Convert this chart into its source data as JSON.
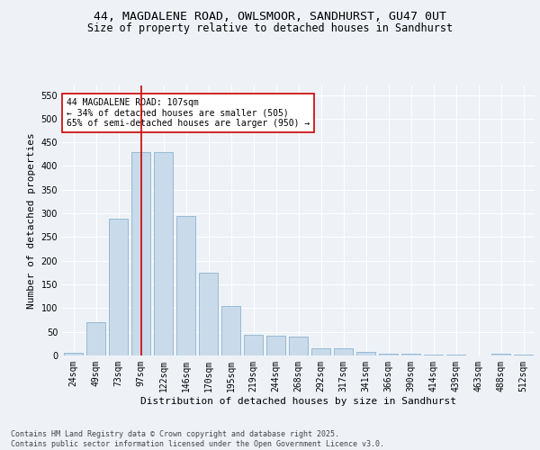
{
  "title_line1": "44, MAGDALENE ROAD, OWLSMOOR, SANDHURST, GU47 0UT",
  "title_line2": "Size of property relative to detached houses in Sandhurst",
  "xlabel": "Distribution of detached houses by size in Sandhurst",
  "ylabel": "Number of detached properties",
  "categories": [
    "24sqm",
    "49sqm",
    "73sqm",
    "97sqm",
    "122sqm",
    "146sqm",
    "170sqm",
    "195sqm",
    "219sqm",
    "244sqm",
    "268sqm",
    "292sqm",
    "317sqm",
    "341sqm",
    "366sqm",
    "390sqm",
    "414sqm",
    "439sqm",
    "463sqm",
    "488sqm",
    "512sqm"
  ],
  "values": [
    6,
    70,
    289,
    430,
    430,
    295,
    175,
    105,
    44,
    42,
    40,
    15,
    15,
    8,
    4,
    3,
    2,
    2,
    0,
    3,
    2
  ],
  "bar_color": "#c9daea",
  "bar_edge_color": "#7aaac8",
  "vline_x_index": 3.0,
  "vline_color": "#cc0000",
  "annotation_text": "44 MAGDALENE ROAD: 107sqm\n← 34% of detached houses are smaller (505)\n65% of semi-detached houses are larger (950) →",
  "annotation_box_color": "#ffffff",
  "annotation_box_edgecolor": "#cc0000",
  "footnote": "Contains HM Land Registry data © Crown copyright and database right 2025.\nContains public sector information licensed under the Open Government Licence v3.0.",
  "ylim": [
    0,
    570
  ],
  "yticks": [
    0,
    50,
    100,
    150,
    200,
    250,
    300,
    350,
    400,
    450,
    500,
    550
  ],
  "bg_color": "#eef2f7",
  "grid_color": "#ffffff",
  "title_fontsize": 9.5,
  "subtitle_fontsize": 8.5,
  "axis_label_fontsize": 8,
  "tick_fontsize": 7,
  "annotation_fontsize": 7,
  "footnote_fontsize": 6
}
